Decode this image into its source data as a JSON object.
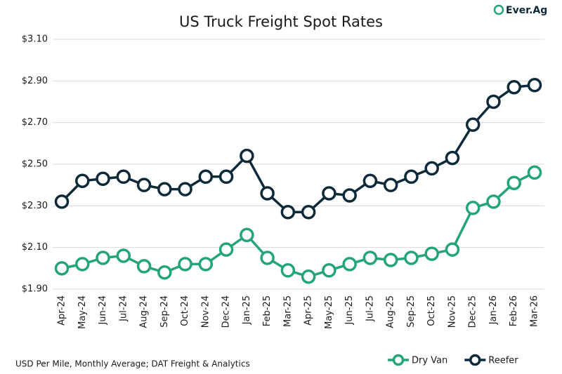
{
  "chart_data": {
    "type": "line",
    "title": "US Truck Freight Spot Rates",
    "logo": "Ever.Ag",
    "note": "USD Per Mile, Monthly Average; DAT Freight & Analytics",
    "categories": [
      "Apr-24",
      "May-24",
      "Jun-24",
      "Jul-24",
      "Aug-24",
      "Sep-24",
      "Oct-24",
      "Nov-24",
      "Dec-24",
      "Jan-25",
      "Feb-25",
      "Mar-25",
      "Apr-25",
      "May-25",
      "Jun-25",
      "Jul-25",
      "Aug-25",
      "Sep-25",
      "Oct-25",
      "Nov-25",
      "Dec-25",
      "Jan-26",
      "Feb-26",
      "Mar-26"
    ],
    "series": [
      {
        "name": "Dry Van",
        "color": "#23a47a",
        "values": [
          2.0,
          2.02,
          2.05,
          2.06,
          2.01,
          1.98,
          2.02,
          2.02,
          2.09,
          2.16,
          2.05,
          1.99,
          1.96,
          1.99,
          2.02,
          2.05,
          2.04,
          2.05,
          2.07,
          2.09,
          2.29,
          2.32,
          2.41,
          2.46
        ]
      },
      {
        "name": "Reefer",
        "color": "#0d2a3a",
        "values": [
          2.32,
          2.42,
          2.43,
          2.44,
          2.4,
          2.38,
          2.38,
          2.44,
          2.44,
          2.54,
          2.36,
          2.27,
          2.27,
          2.36,
          2.35,
          2.42,
          2.4,
          2.44,
          2.48,
          2.53,
          2.69,
          2.8,
          2.87,
          2.88
        ]
      }
    ],
    "ylim": [
      1.9,
      3.1
    ],
    "yticks": [
      {
        "value": 1.9,
        "label": "$1.90"
      },
      {
        "value": 2.1,
        "label": "$2.10"
      },
      {
        "value": 2.3,
        "label": "$2.30"
      },
      {
        "value": 2.5,
        "label": "$2.50"
      },
      {
        "value": 2.7,
        "label": "$2.70"
      },
      {
        "value": 2.9,
        "label": "$2.90"
      },
      {
        "value": 3.1,
        "label": "$3.10"
      }
    ],
    "grid": true,
    "legend": "bottom-right"
  }
}
